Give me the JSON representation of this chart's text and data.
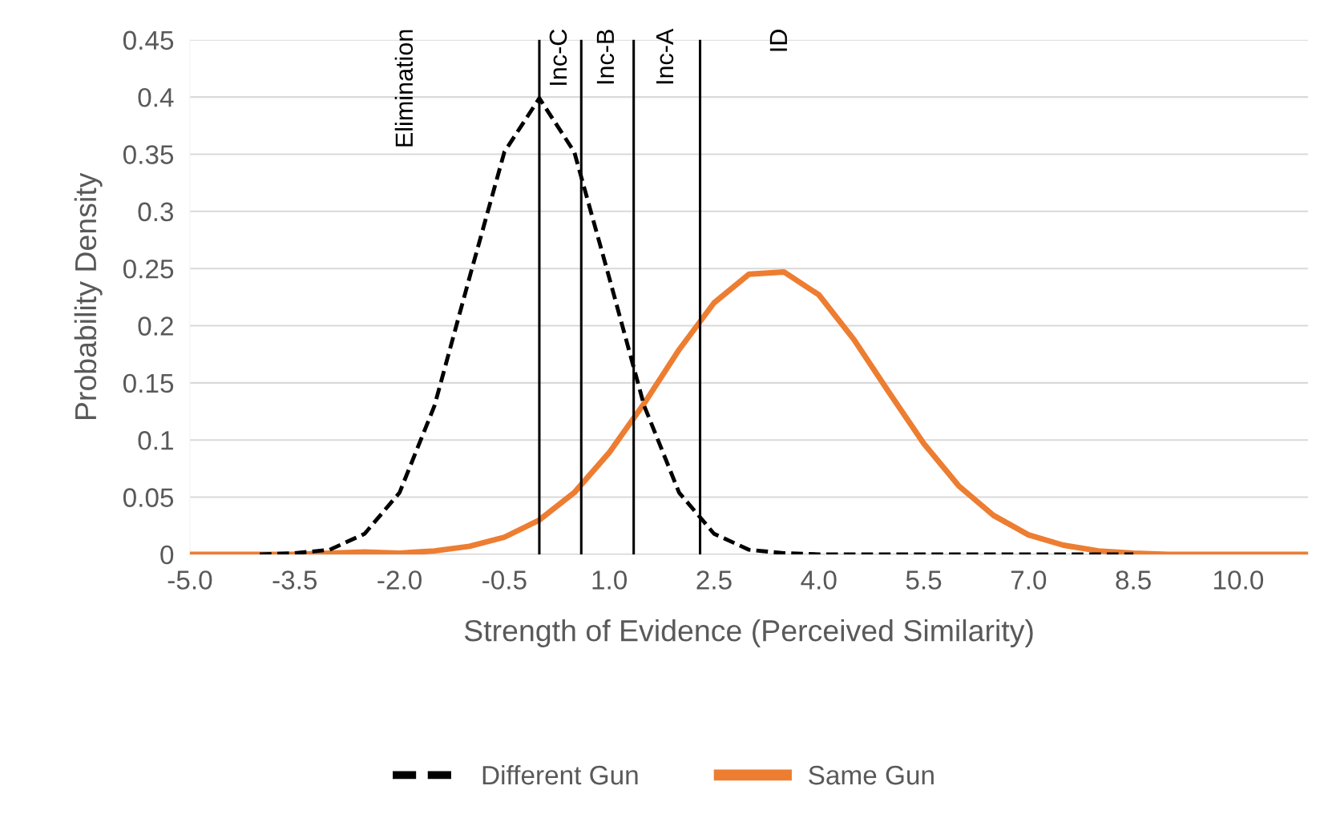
{
  "chart_data": {
    "type": "line",
    "xlabel": "Strength of Evidence (Perceived Similarity)",
    "ylabel": "Probability Density",
    "x": [
      -5,
      -4.5,
      -4,
      -3.5,
      -3,
      -2.5,
      -2,
      -1.5,
      -1,
      -0.5,
      0,
      0.5,
      1,
      1.5,
      2,
      2.5,
      3,
      3.5,
      4,
      4.5,
      5,
      5.5,
      6,
      6.5,
      7,
      7.5,
      8,
      8.5,
      9,
      9.5,
      10,
      10.5,
      11
    ],
    "series": [
      {
        "name": "Different Gun",
        "color": "#000000",
        "line_style": "dashed",
        "values": [
          null,
          null,
          0,
          0.001,
          0.004,
          0.018,
          0.054,
          0.13,
          0.242,
          0.352,
          0.399,
          0.352,
          0.242,
          0.13,
          0.054,
          0.018,
          0.004,
          0.001,
          0,
          0,
          0,
          0,
          0,
          0,
          0,
          0,
          0,
          0,
          null,
          null,
          null,
          null,
          null
        ]
      },
      {
        "name": "Same Gun",
        "color": "#ed7d31",
        "line_style": "solid",
        "values": [
          0,
          0,
          0,
          0,
          0.001,
          0.002,
          0.001,
          0.003,
          0.007,
          0.015,
          0.03,
          0.054,
          0.089,
          0.132,
          0.179,
          0.22,
          0.245,
          0.247,
          0.227,
          0.188,
          0.142,
          0.097,
          0.06,
          0.034,
          0.017,
          0.008,
          0.003,
          0.001,
          0,
          0,
          0,
          0,
          0
        ]
      }
    ],
    "xlim": [
      -5,
      11
    ],
    "xticks": [
      {
        "value": -5,
        "label": "-5.0"
      },
      {
        "value": -3.5,
        "label": "-3.5"
      },
      {
        "value": -2,
        "label": "-2.0"
      },
      {
        "value": -0.5,
        "label": "-0.5"
      },
      {
        "value": 1,
        "label": "1.0"
      },
      {
        "value": 2.5,
        "label": "2.5"
      },
      {
        "value": 4,
        "label": "4.0"
      },
      {
        "value": 5.5,
        "label": "5.5"
      },
      {
        "value": 7,
        "label": "7.0"
      },
      {
        "value": 8.5,
        "label": "8.5"
      },
      {
        "value": 10,
        "label": "10.0"
      }
    ],
    "ylim": [
      0,
      0.45
    ],
    "yticks": [
      0,
      0.05,
      0.1,
      0.15,
      0.2,
      0.25,
      0.3,
      0.35,
      0.4,
      0.45
    ],
    "ref_lines": [
      {
        "axis": "x",
        "value": 0,
        "color": "#000000"
      },
      {
        "axis": "x",
        "value": 0.6,
        "color": "#000000"
      },
      {
        "axis": "x",
        "value": 1.35,
        "color": "#000000"
      },
      {
        "axis": "x",
        "value": 2.3,
        "color": "#000000"
      }
    ],
    "annotations": [
      "Elimination",
      "Inc-C",
      "Inc-B",
      "Inc-A",
      "ID"
    ],
    "grid": "y",
    "legend": "bottom",
    "marker": "none"
  }
}
